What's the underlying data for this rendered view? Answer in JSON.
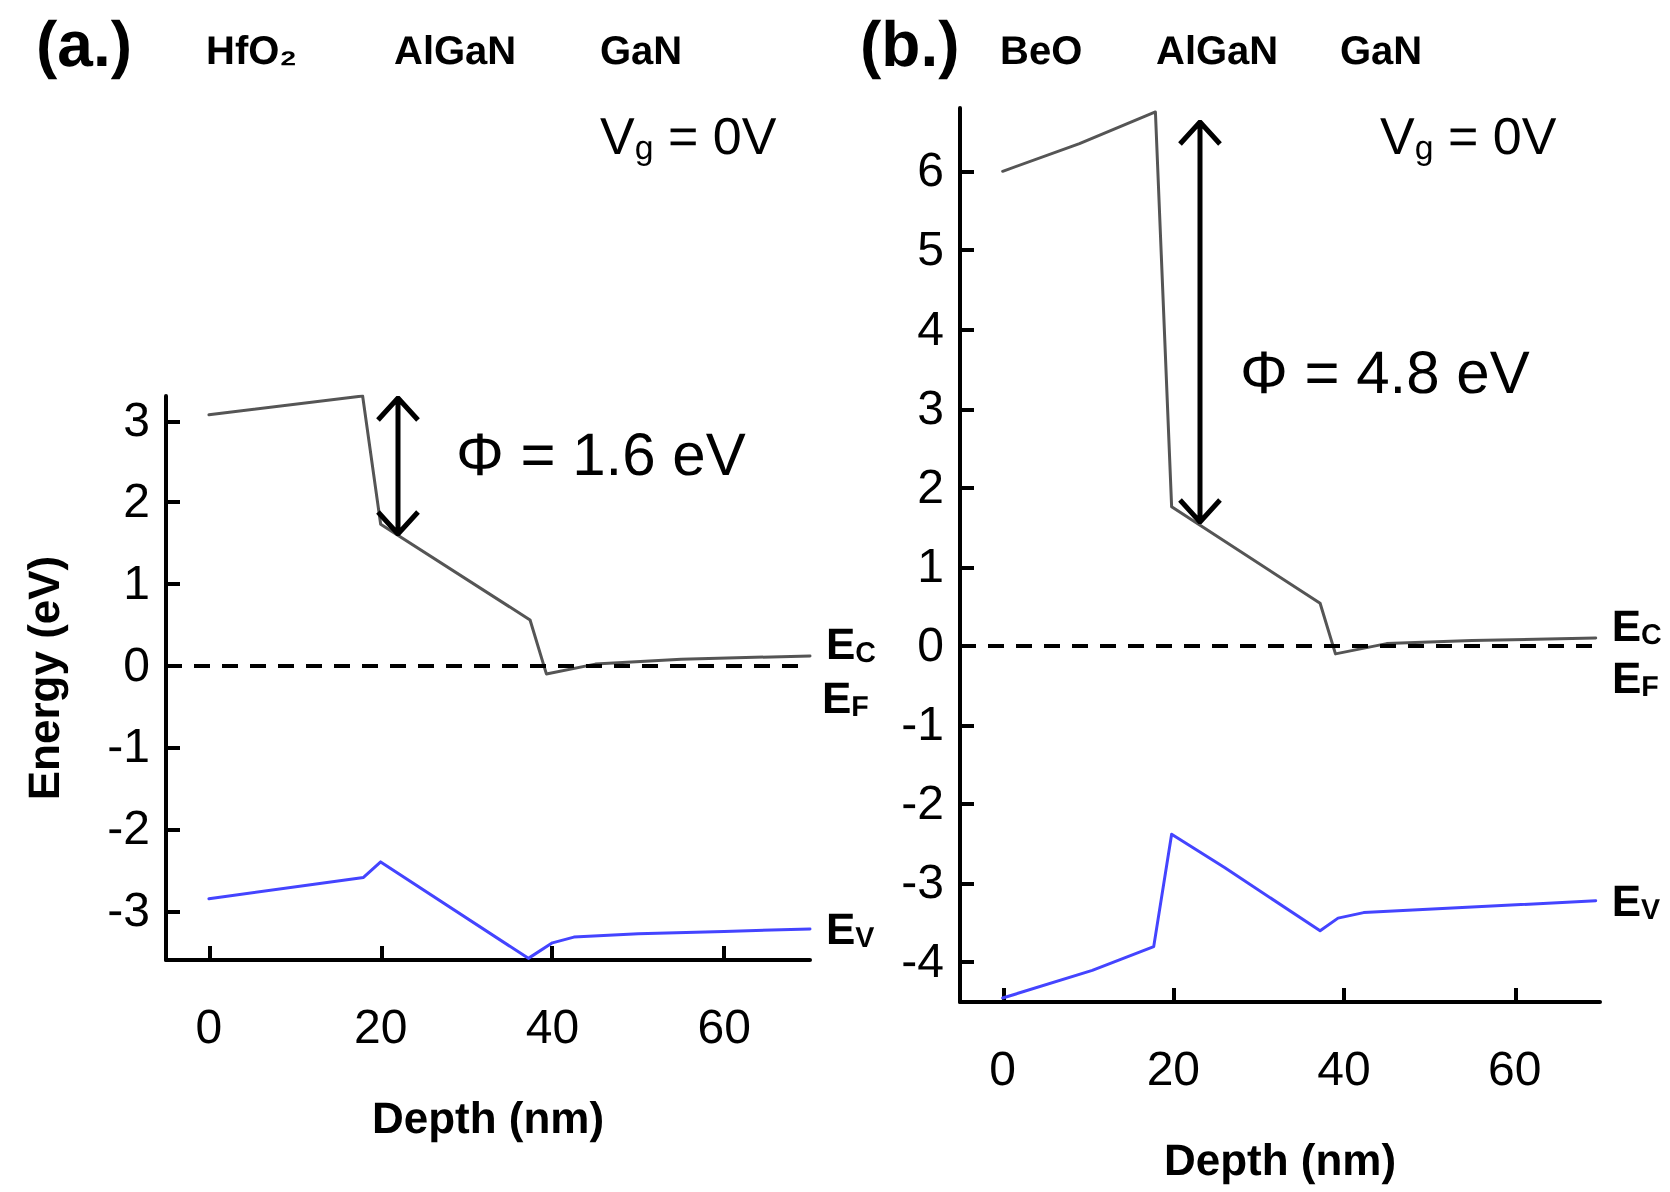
{
  "chart_data": [
    {
      "type": "line",
      "title": "(a.)",
      "xlabel": "Depth (nm)",
      "ylabel": "Energy (eV)",
      "xlim": [
        -5,
        70
      ],
      "xticks": [
        0,
        20,
        40,
        60
      ],
      "ylim": [
        -3.6,
        3.3
      ],
      "yticks": [
        -3,
        -2,
        -1,
        0,
        1,
        2,
        3
      ],
      "grid": false,
      "legend": false,
      "marker": "none",
      "line_style": "solid",
      "series": [
        {
          "name": "E$_{C}$",
          "color": "#555555",
          "x": [
            0,
            17.9,
            20,
            37.4,
            39.3,
            45,
            55,
            70
          ],
          "values": [
            3.07,
            3.3,
            1.73,
            0.56,
            -0.1,
            0.02,
            0.08,
            0.12
          ]
        },
        {
          "name": "E$_{V}$",
          "color": "#4444ff",
          "x": [
            0,
            18,
            20,
            37.2,
            40,
            42.5,
            50,
            60,
            70
          ],
          "values": [
            -2.85,
            -2.59,
            -2.4,
            -3.58,
            -3.39,
            -3.32,
            -3.28,
            -3.25,
            -3.22
          ]
        }
      ],
      "ref_lines": [
        {
          "axis": "y",
          "value": 0,
          "label": "E$_{F}$",
          "color": "#000000",
          "line_style": "dashed"
        }
      ],
      "annotations": [
        "HfO₂",
        "AlGaN",
        "GaN",
        "V$_{g}$ = 0V",
        "Φ = 1.6 eV"
      ]
    },
    {
      "type": "line",
      "title": "(b.)",
      "xlabel": "Depth (nm)",
      "xlim": [
        -5,
        70
      ],
      "xticks": [
        0,
        20,
        40,
        60
      ],
      "ylim": [
        -4.5,
        6.8
      ],
      "yticks": [
        -4,
        -3,
        -2,
        -1,
        0,
        1,
        2,
        3,
        4,
        5,
        6
      ],
      "grid": false,
      "legend": false,
      "marker": "none",
      "line_style": "solid",
      "series": [
        {
          "name": "E$_{C}$",
          "color": "#555555",
          "x": [
            0,
            9,
            17.9,
            19.8,
            37.2,
            39,
            45,
            55,
            69.5
          ],
          "values": [
            6.0,
            6.35,
            6.75,
            1.76,
            0.54,
            -0.1,
            0.03,
            0.07,
            0.1
          ]
        },
        {
          "name": "E$_{V}$",
          "color": "#4444ff",
          "x": [
            0,
            10.5,
            17.7,
            19.8,
            26,
            37.2,
            39.3,
            42.3,
            55,
            69.5
          ],
          "values": [
            -4.45,
            -4.1,
            -3.8,
            -2.38,
            -2.8,
            -3.6,
            -3.44,
            -3.37,
            -3.3,
            -3.22
          ]
        }
      ],
      "ref_lines": [
        {
          "axis": "y",
          "value": 0,
          "label": "E$_{F}$",
          "color": "#000000",
          "line_style": "dashed"
        }
      ],
      "annotations": [
        "BeO",
        "AlGaN",
        "GaN",
        "V$_{g}$ = 0V",
        "Φ = 4.8 eV"
      ]
    }
  ]
}
